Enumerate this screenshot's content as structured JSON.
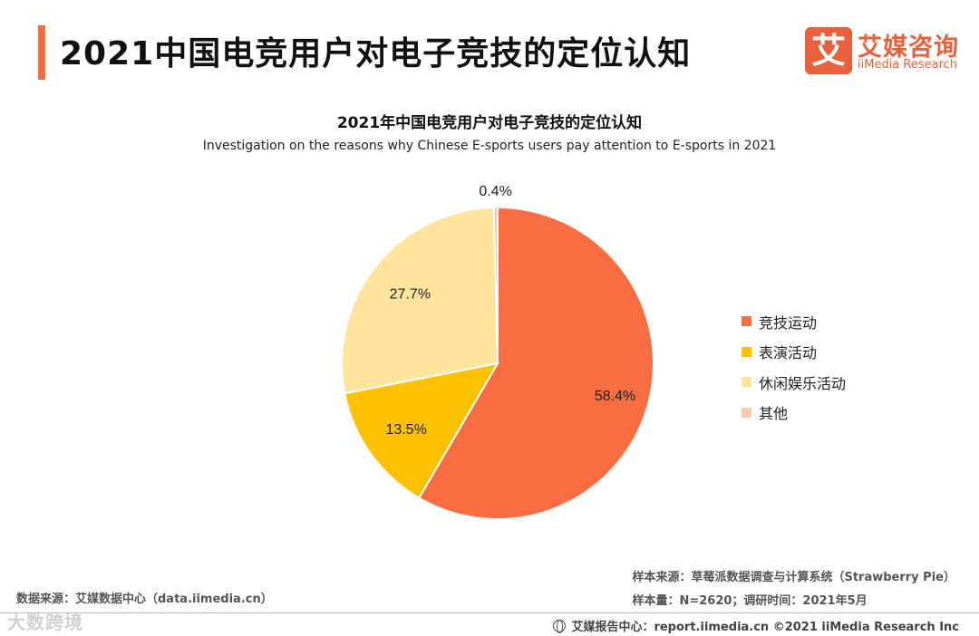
{
  "page_title": "2021中国电竞用户对电子竞技的定位认知",
  "logo": {
    "cn": "艾媒咨询",
    "en": "iiMedia Research",
    "mark": "艾"
  },
  "chart_data": {
    "type": "pie",
    "title": "2021年中国电竞用户对电子竞技的定位认知",
    "subtitle": "Investigation on the reasons why Chinese E-sports users pay attention to E-sports in 2021",
    "categories": [
      "竞技运动",
      "表演活动",
      "休闲娱乐活动",
      "其他"
    ],
    "values": [
      58.4,
      13.5,
      27.7,
      0.4
    ],
    "labels": [
      "58.4%",
      "13.5%",
      "27.7%",
      "0.4%"
    ],
    "colors": [
      "#f86d41",
      "#fec101",
      "#ffe49d",
      "#f8c8b0"
    ],
    "legend_position": "right"
  },
  "source": {
    "sample_source": "样本来源：草莓派数据调查与计算系统（Strawberry Pie）",
    "sample_size": "样本量：N=2620；调研时间：2021年5月",
    "data_source": "数据来源：艾媒数据中心（data.iimedia.cn）"
  },
  "footer": {
    "text": "艾媒报告中心：report.iimedia.cn ©2021  iiMedia Research  Inc"
  },
  "watermark": "大数跨境"
}
